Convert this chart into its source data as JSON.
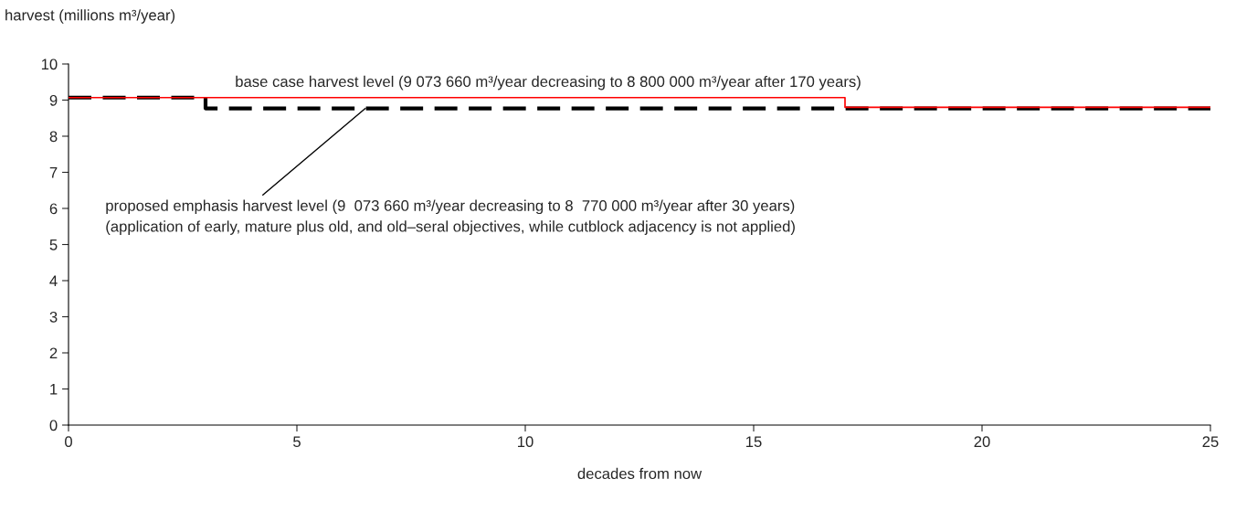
{
  "chart_data": {
    "type": "step",
    "xlabel": "decades from now",
    "ylabel": "harvest (millions m³/year)",
    "series": [
      {
        "x": [
          0,
          17,
          25
        ],
        "values": [
          9.07,
          8.8,
          8.8
        ],
        "color": "#ff0000",
        "line_style": "solid"
      },
      {
        "x": [
          0,
          3,
          25
        ],
        "values": [
          9.07,
          8.77,
          8.77
        ],
        "color": "#000000",
        "line_style": "dashed"
      }
    ],
    "annotations": [
      {
        "text": "base case harvest level (9 073 660 m³/year decreasing to 8 800 000 m³/year after 170 years)",
        "x": 10.5,
        "y": 9.07
      },
      {
        "text": "proposed emphasis harvest level (9  073 660 m³/year decreasing to 8  770 000 m³/year after 30 years)\n(application of early, mature plus old, and old–seral objectives, while cutblock adjacency is not applied)",
        "x": 6.5,
        "y": 8.77
      }
    ],
    "xlim": [
      0,
      25
    ],
    "xticks": [
      0,
      5,
      10,
      15,
      20,
      25
    ],
    "ylim": [
      0,
      10
    ],
    "yticks": [
      0,
      1,
      2,
      3,
      4,
      5,
      6,
      7,
      8,
      9,
      10
    ],
    "grid": false,
    "legend": false,
    "marker": "none"
  }
}
